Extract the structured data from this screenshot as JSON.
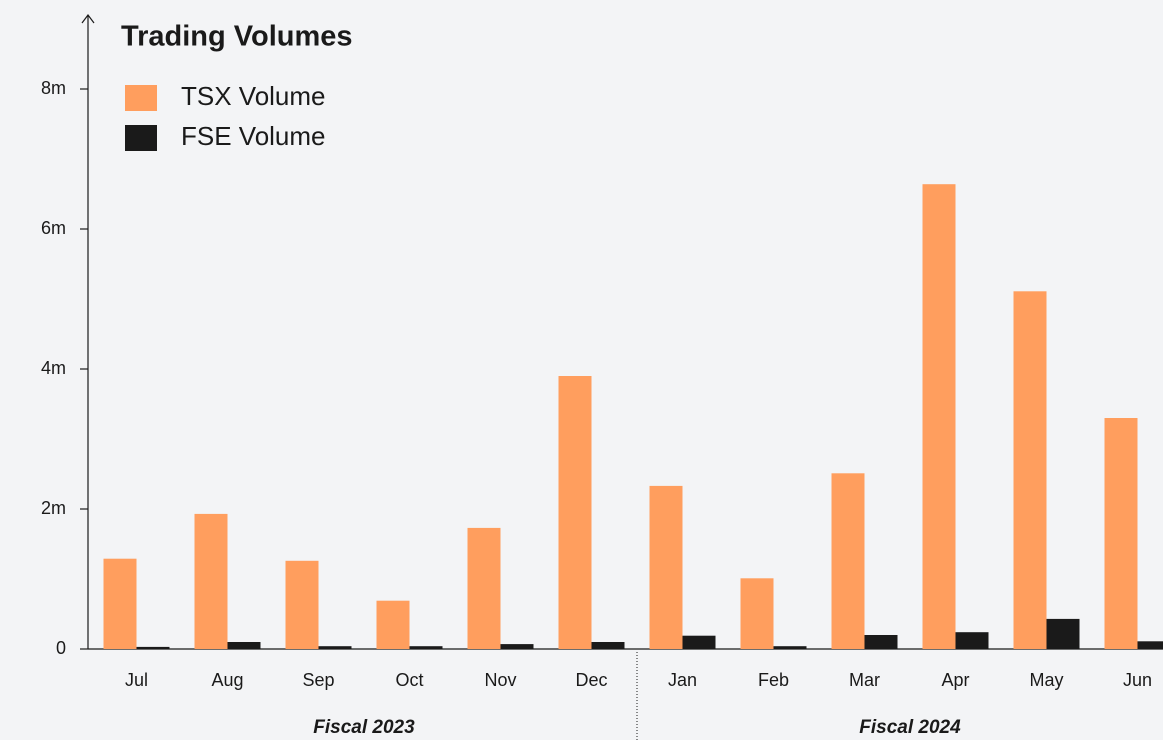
{
  "chart_data": {
    "type": "bar",
    "title": "Trading Volumes",
    "categories": [
      "Jul",
      "Aug",
      "Sep",
      "Oct",
      "Nov",
      "Dec",
      "Jan",
      "Feb",
      "Mar",
      "Apr",
      "May",
      "Jun"
    ],
    "groups": [
      "Fiscal 2023",
      "Fiscal 2024"
    ],
    "series": [
      {
        "name": "TSX Volume",
        "color": "#ff9e5e",
        "values": [
          1.29,
          1.93,
          1.26,
          0.69,
          1.73,
          3.9,
          2.33,
          1.01,
          2.51,
          6.64,
          5.11,
          3.3
        ]
      },
      {
        "name": "FSE Volume",
        "color": "#1a1a1a",
        "values": [
          0.03,
          0.1,
          0.04,
          0.04,
          0.07,
          0.1,
          0.19,
          0.04,
          0.2,
          0.24,
          0.43,
          0.11
        ]
      }
    ],
    "ylim": [
      0,
      8
    ],
    "yticks": [
      0,
      {
        "value": 2,
        "label": "2m"
      },
      {
        "value": 4,
        "label": "4m"
      },
      {
        "value": 6,
        "label": "6m"
      },
      {
        "value": 8,
        "label": "8m"
      }
    ],
    "legend": "top-left"
  }
}
